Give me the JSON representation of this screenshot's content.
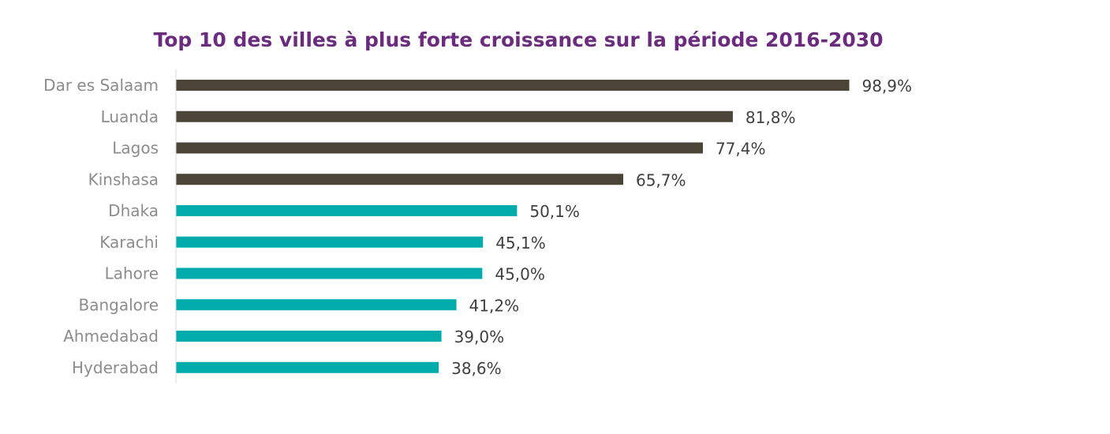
{
  "chart_data": {
    "type": "bar",
    "orientation": "horizontal",
    "title": "Top 10 des villes à plus forte croissance sur la période 2016-2030",
    "xlabel": "",
    "ylabel": "",
    "categories": [
      "Dar es Salaam",
      "Luanda",
      "Lagos",
      "Kinshasa",
      "Dhaka",
      "Karachi",
      "Lahore",
      "Bangalore",
      "Ahmedabad",
      "Hyderabad"
    ],
    "values": [
      98.9,
      81.8,
      77.4,
      65.7,
      50.1,
      45.1,
      45.0,
      41.2,
      39.0,
      38.6
    ],
    "value_labels": [
      "98,9%",
      "81,8%",
      "77,4%",
      "65,7%",
      "50,1%",
      "45,1%",
      "45,0%",
      "41,2%",
      "39,0%",
      "38,6%"
    ],
    "bar_colors": [
      "#4a4536",
      "#4a4536",
      "#4a4536",
      "#4a4536",
      "#00abab",
      "#00abab",
      "#00abab",
      "#00abab",
      "#00abab",
      "#00abab"
    ],
    "xlim": [
      0,
      100
    ],
    "grid": false,
    "legend": "none"
  }
}
